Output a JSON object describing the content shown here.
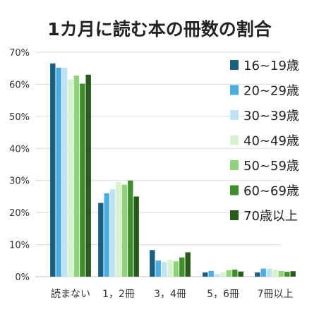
{
  "chart_data": {
    "type": "bar",
    "title": "1カ月に読む本の冊数の割合",
    "categories": [
      "読まない",
      "1，2冊",
      "3，4冊",
      "5，6冊",
      "7冊以上"
    ],
    "y_ticks": [
      "0%",
      "10%",
      "20%",
      "30%",
      "40%",
      "50%",
      "60%",
      "70%"
    ],
    "ylim": [
      0,
      70
    ],
    "grid": true,
    "legend_position": "right",
    "series": [
      {
        "name": "16~19歳",
        "color": "#1a5e80",
        "values": [
          66.5,
          23.0,
          8.3,
          1.3,
          1.3
        ]
      },
      {
        "name": "20~29歳",
        "color": "#4aaee0",
        "values": [
          65.2,
          26.0,
          5.0,
          1.8,
          2.5
        ]
      },
      {
        "name": "30~39歳",
        "color": "#bde3f5",
        "values": [
          65.2,
          27.3,
          4.6,
          0.8,
          2.5
        ]
      },
      {
        "name": "40~49歳",
        "color": "#d7f2cf",
        "values": [
          61.5,
          29.5,
          5.3,
          1.4,
          2.2
        ]
      },
      {
        "name": "50~59歳",
        "color": "#8fd27a",
        "values": [
          62.7,
          28.7,
          4.8,
          2.0,
          1.8
        ]
      },
      {
        "name": "60~69歳",
        "color": "#3e8f2c",
        "values": [
          60.2,
          30.0,
          6.0,
          2.2,
          1.5
        ]
      },
      {
        "name": "70歳以上",
        "color": "#285a1c",
        "values": [
          63.0,
          25.0,
          7.6,
          1.6,
          1.7
        ]
      }
    ]
  }
}
